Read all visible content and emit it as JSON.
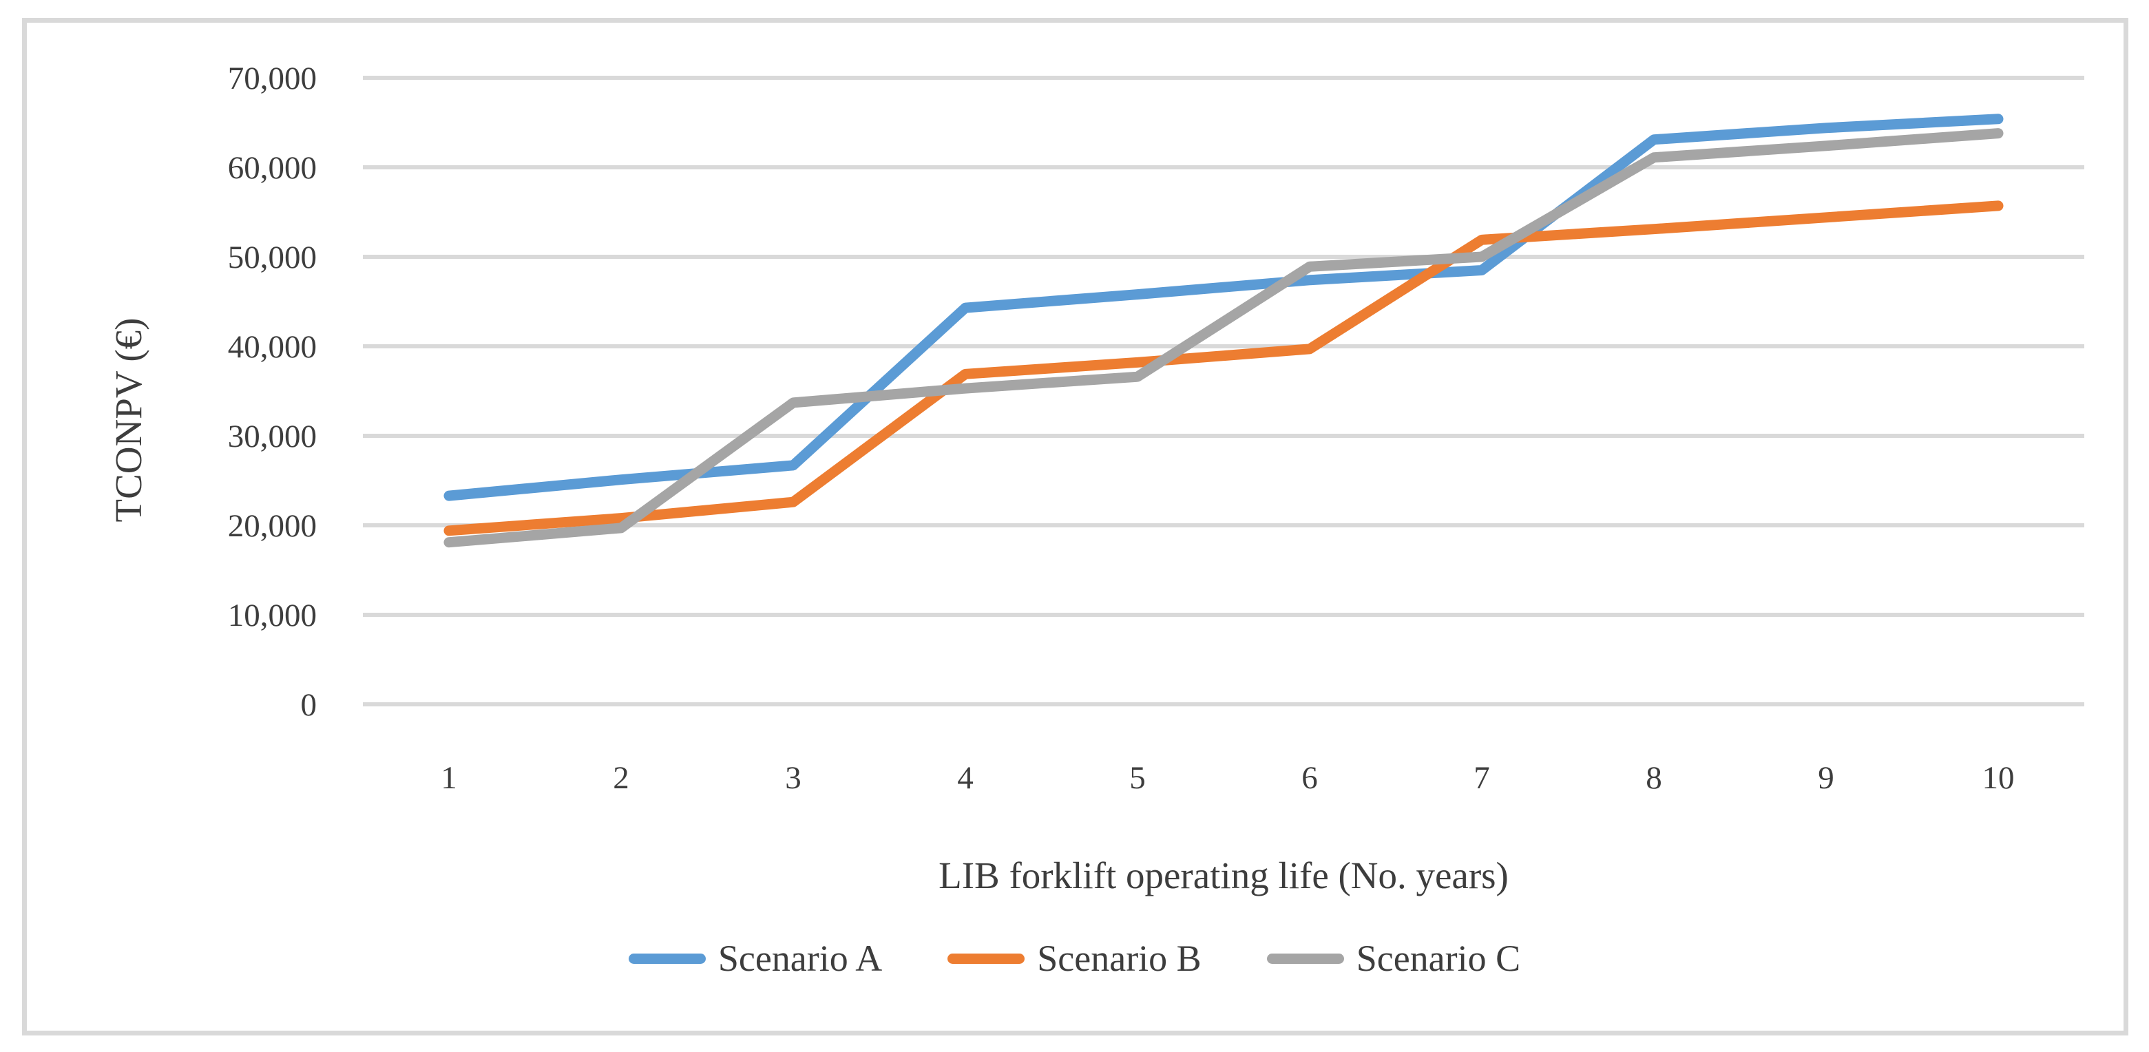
{
  "figure": {
    "background": "#ffffff",
    "frame_border_color": "#d9d9d9"
  },
  "chart_data": {
    "type": "line",
    "title": "",
    "xlabel": "LIB forklift operating life (No. years)",
    "ylabel": "TCONPV (€)",
    "x_categories": [
      "1",
      "2",
      "3",
      "4",
      "5",
      "6",
      "7",
      "8",
      "9",
      "10"
    ],
    "ylim": [
      0,
      70000
    ],
    "y_tick_step": 10000,
    "y_tick_labels": [
      "0",
      "10,000",
      "20,000",
      "30,000",
      "40,000",
      "50,000",
      "60,000",
      "70,000"
    ],
    "grid": "horizontal",
    "gridline_color": "#d9d9d9",
    "text_color": "#3d3d3d",
    "legend_position": "bottom",
    "series": [
      {
        "name": "Scenario A",
        "color": "#5b9bd5",
        "values": [
          23300,
          25100,
          26700,
          44300,
          45800,
          47400,
          48500,
          63100,
          64400,
          65400
        ]
      },
      {
        "name": "Scenario B",
        "color": "#ed7d31",
        "values": [
          19400,
          20800,
          22600,
          36900,
          38200,
          39700,
          51900,
          53100,
          54400,
          55700
        ]
      },
      {
        "name": "Scenario C",
        "color": "#a5a5a5",
        "values": [
          18100,
          19700,
          33700,
          35300,
          36600,
          48900,
          50000,
          61100,
          62400,
          63800
        ]
      }
    ]
  }
}
